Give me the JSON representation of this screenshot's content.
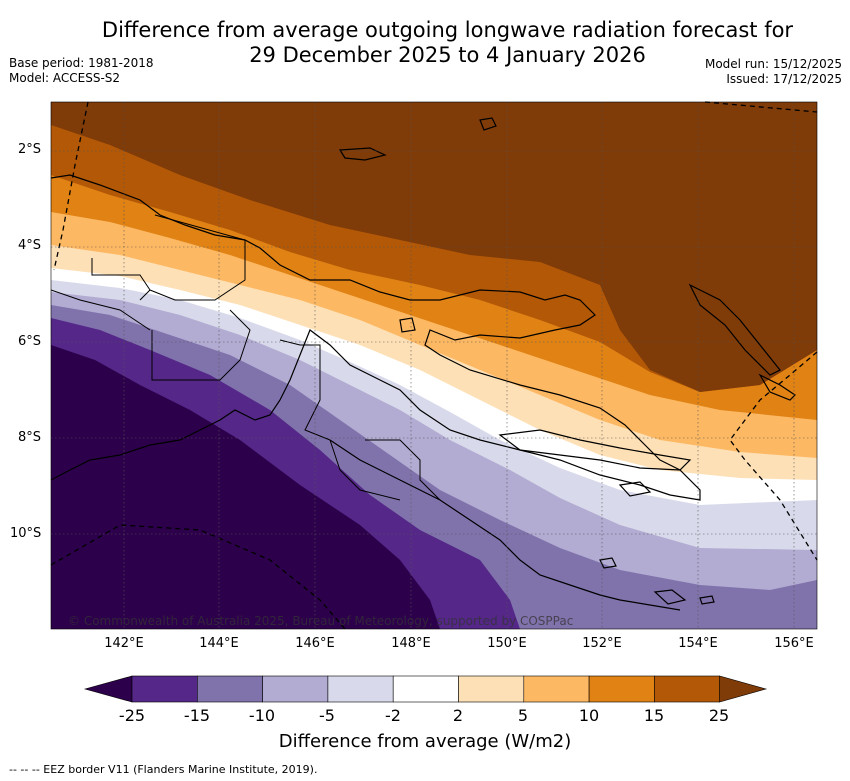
{
  "title_line1": "Difference from average outgoing longwave radiation forecast for",
  "title_line2": "29 December 2025 to 4 January 2026",
  "base_period": "Base period: 1981-2018",
  "model": "Model: ACCESS-S2",
  "model_run": "Model run: 15/12/2025",
  "issued": "Issued: 17/12/2025",
  "lat_ticks": [
    "2°S",
    "4°S",
    "6°S",
    "8°S",
    "10°S"
  ],
  "lon_ticks": [
    "142°E",
    "144°E",
    "146°E",
    "148°E",
    "150°E",
    "152°E",
    "154°E",
    "156°E"
  ],
  "colorbar": {
    "labels": [
      "-25",
      "-15",
      "-10",
      "-5",
      "-2",
      "2",
      "5",
      "10",
      "15",
      "25"
    ],
    "colors": [
      "#2d004b",
      "#542788",
      "#8073ac",
      "#b2abd2",
      "#d8daeb",
      "#ffffff",
      "#fee0b6",
      "#fdb863",
      "#e08214",
      "#b35806",
      "#7f3b08"
    ],
    "title": "Difference from average (W/m2)"
  },
  "copyright": "© Commonwealth of Australia 2025, Bureau of Meteorology, supported by COSPPac",
  "footnote": "-- -- -- EEZ border V11 (Flanders Marine Institute, 2019)."
}
